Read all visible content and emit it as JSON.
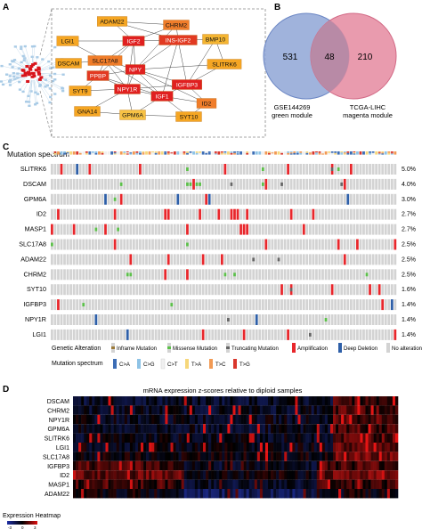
{
  "panels": {
    "a": "A",
    "b": "B",
    "c": "C",
    "d": "D"
  },
  "network": {
    "nodes": [
      {
        "label": "ADAM22",
        "color": "#f5a623"
      },
      {
        "label": "CHRM2",
        "color": "#f07d2a"
      },
      {
        "label": "LGI1",
        "color": "#f5a623"
      },
      {
        "label": "IGF2",
        "color": "#e02020"
      },
      {
        "label": "INS-IGF2",
        "color": "#e23a22"
      },
      {
        "label": "BMP10",
        "color": "#f4b532"
      },
      {
        "label": "DSCAM",
        "color": "#f5a623"
      },
      {
        "label": "SLC17A8",
        "color": "#f07d2a"
      },
      {
        "label": "NPY",
        "color": "#e02020"
      },
      {
        "label": "SLITRK6",
        "color": "#f5a623"
      },
      {
        "label": "PPBP",
        "color": "#e23a22"
      },
      {
        "label": "IGFBP3",
        "color": "#e02020"
      },
      {
        "label": "SYT9",
        "color": "#f5a623"
      },
      {
        "label": "NPY1R",
        "color": "#e02020"
      },
      {
        "label": "IGF1",
        "color": "#e02020"
      },
      {
        "label": "ID2",
        "color": "#f07d2a"
      },
      {
        "label": "GNA14",
        "color": "#f5a623"
      },
      {
        "label": "GPM6A",
        "color": "#f7c244"
      },
      {
        "label": "SYT10",
        "color": "#f5a623"
      }
    ]
  },
  "venn": {
    "left_count": "531",
    "overlap_count": "48",
    "right_count": "210",
    "left_label_1": "GSE144269",
    "left_label_2": "green module",
    "right_label_1": "TCGA-LIHC",
    "right_label_2": "magenta module",
    "left_color": "#8fa6d6",
    "right_color": "#e58aa0"
  },
  "oncoprint": {
    "spectrum_title": "Mutation spectrum",
    "genes": [
      "SLITRK6",
      "DSCAM",
      "GPM6A",
      "ID2",
      "MASP1",
      "SLC17A8",
      "ADAM22",
      "CHRM2",
      "SYT10",
      "IGFBP3",
      "NPY1R",
      "LGI1"
    ],
    "percents": [
      "5.0%",
      "4.0%",
      "3.0%",
      "2.7%",
      "2.7%",
      "2.5%",
      "2.5%",
      "2.5%",
      "1.6%",
      "1.4%",
      "1.4%",
      "1.4%"
    ],
    "legend_alteration_title": "Genetic Alteration",
    "legend_alteration": [
      "Inframe Mutation",
      "Missense Mutation",
      "Truncating Mutation",
      "Amplification",
      "Deep Deletion",
      "No alterations"
    ],
    "legend_spectrum_title": "Mutation spectrum",
    "legend_spectrum": [
      "C>A",
      "C>G",
      "C>T",
      "T>A",
      "T>C",
      "T>G"
    ],
    "colors": {
      "amplification": "#e8262b",
      "deep_deletion": "#2e5fa8",
      "missense": "#5cc04a",
      "truncating": "#666666",
      "inframe": "#9c7a3a",
      "no_alteration": "#d3d3d3",
      "CA": "#3c6db5",
      "CG": "#8ec3e6",
      "CT": "#f0f0f0",
      "TA": "#f6d77a",
      "TC": "#f29a54",
      "TG": "#d9362c"
    }
  },
  "heatmap": {
    "title": "mRNA expression z-scores relative to diploid samples",
    "genes": [
      "DSCAM",
      "CHRM2",
      "NPY1R",
      "GPM6A",
      "SLITRK6",
      "LGI1",
      "SLC17A8",
      "IGFBP3",
      "ID2",
      "MASP1",
      "ADAM22"
    ],
    "legend_title": "Expression Heatmap",
    "legend_ticks": [
      "-3",
      "0",
      "3"
    ]
  }
}
